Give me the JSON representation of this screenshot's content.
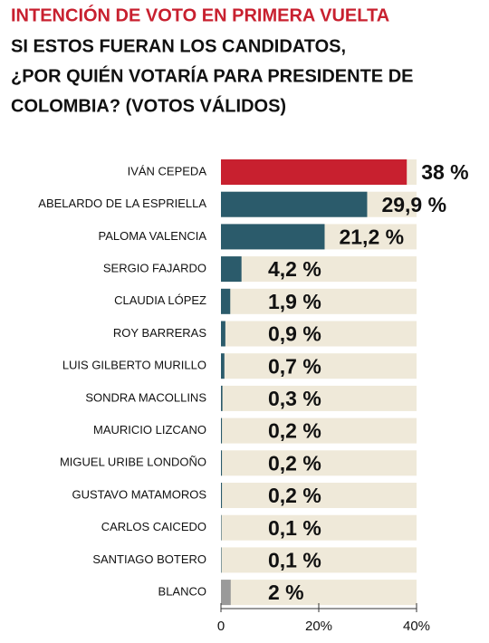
{
  "chart_data": {
    "type": "bar",
    "orientation": "horizontal",
    "title": "INTENCIÓN DE VOTO EN PRIMERA VUELTA",
    "subtitle_lines": [
      "SI ESTOS FUERAN LOS CANDIDATOS,",
      "¿POR QUIÉN VOTARÍA PARA PRESIDENTE DE",
      "COLOMBIA? (VOTOS VÁLIDOS)"
    ],
    "categories": [
      "IVÁN CEPEDA",
      "ABELARDO DE LA ESPRIELLA",
      "PALOMA VALENCIA",
      "SERGIO FAJARDO",
      "CLAUDIA LÓPEZ",
      "ROY BARRERAS",
      "LUIS GILBERTO MURILLO",
      "SONDRA MACOLLINS",
      "MAURICIO LIZCANO",
      "MIGUEL URIBE LONDOÑO",
      "GUSTAVO MATAMOROS",
      "CARLOS CAICEDO",
      "SANTIAGO BOTERO",
      "BLANCO"
    ],
    "values": [
      38,
      29.9,
      21.2,
      4.2,
      1.9,
      0.9,
      0.7,
      0.3,
      0.2,
      0.2,
      0.2,
      0.1,
      0.1,
      2
    ],
    "value_labels": [
      "38 %",
      "29,9 %",
      "21,2 %",
      "4,2 %",
      "1,9 %",
      "0,9 %",
      "0,7 %",
      "0,3 %",
      "0,2 %",
      "0,2 %",
      "0,2 %",
      "0,1 %",
      "0,1 %",
      "2 %"
    ],
    "colors": [
      "#c8202f",
      "#2b5b6b",
      "#2b5b6b",
      "#2b5b6b",
      "#2b5b6b",
      "#2b5b6b",
      "#2b5b6b",
      "#2b5b6b",
      "#2b5b6b",
      "#2b5b6b",
      "#2b5b6b",
      "#2b5b6b",
      "#2b5b6b",
      "#9a9a9a"
    ],
    "xlim": [
      0,
      40
    ],
    "xticks": [
      0,
      {
        "value": 20,
        "label": "20%"
      },
      {
        "value": 40,
        "label": "40%"
      }
    ]
  }
}
